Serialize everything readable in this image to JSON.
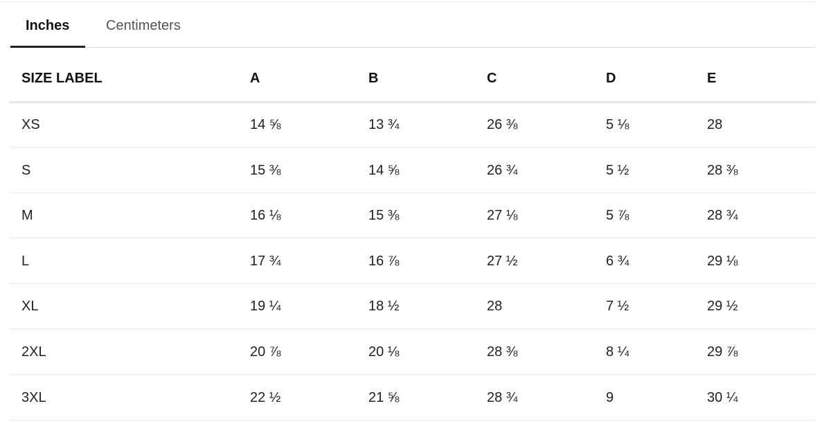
{
  "tabs": {
    "items": [
      "Inches",
      "Centimeters"
    ],
    "active": 0
  },
  "table": {
    "header": [
      "SIZE LABEL",
      "A",
      "B",
      "C",
      "D",
      "E"
    ],
    "rows": [
      [
        "XS",
        "14 ⅝",
        "13 ¾",
        "26 ⅜",
        "5 ⅛",
        "28"
      ],
      [
        "S",
        "15 ⅜",
        "14 ⅝",
        "26 ¾",
        "5 ½",
        "28 ⅜"
      ],
      [
        "M",
        "16 ⅛",
        "15 ⅜",
        "27 ⅛",
        "5 ⅞",
        "28 ¾"
      ],
      [
        "L",
        "17 ¾",
        "16 ⅞",
        "27 ½",
        "6 ¾",
        "29 ⅛"
      ],
      [
        "XL",
        "19 ¼",
        "18 ½",
        "28",
        "7 ½",
        "29 ½"
      ],
      [
        "2XL",
        "20 ⅞",
        "20 ⅛",
        "28 ⅜",
        "8 ¼",
        "29 ⅞"
      ],
      [
        "3XL",
        "22 ½",
        "21 ⅝",
        "28 ¾",
        "9",
        "30 ¼"
      ]
    ]
  }
}
